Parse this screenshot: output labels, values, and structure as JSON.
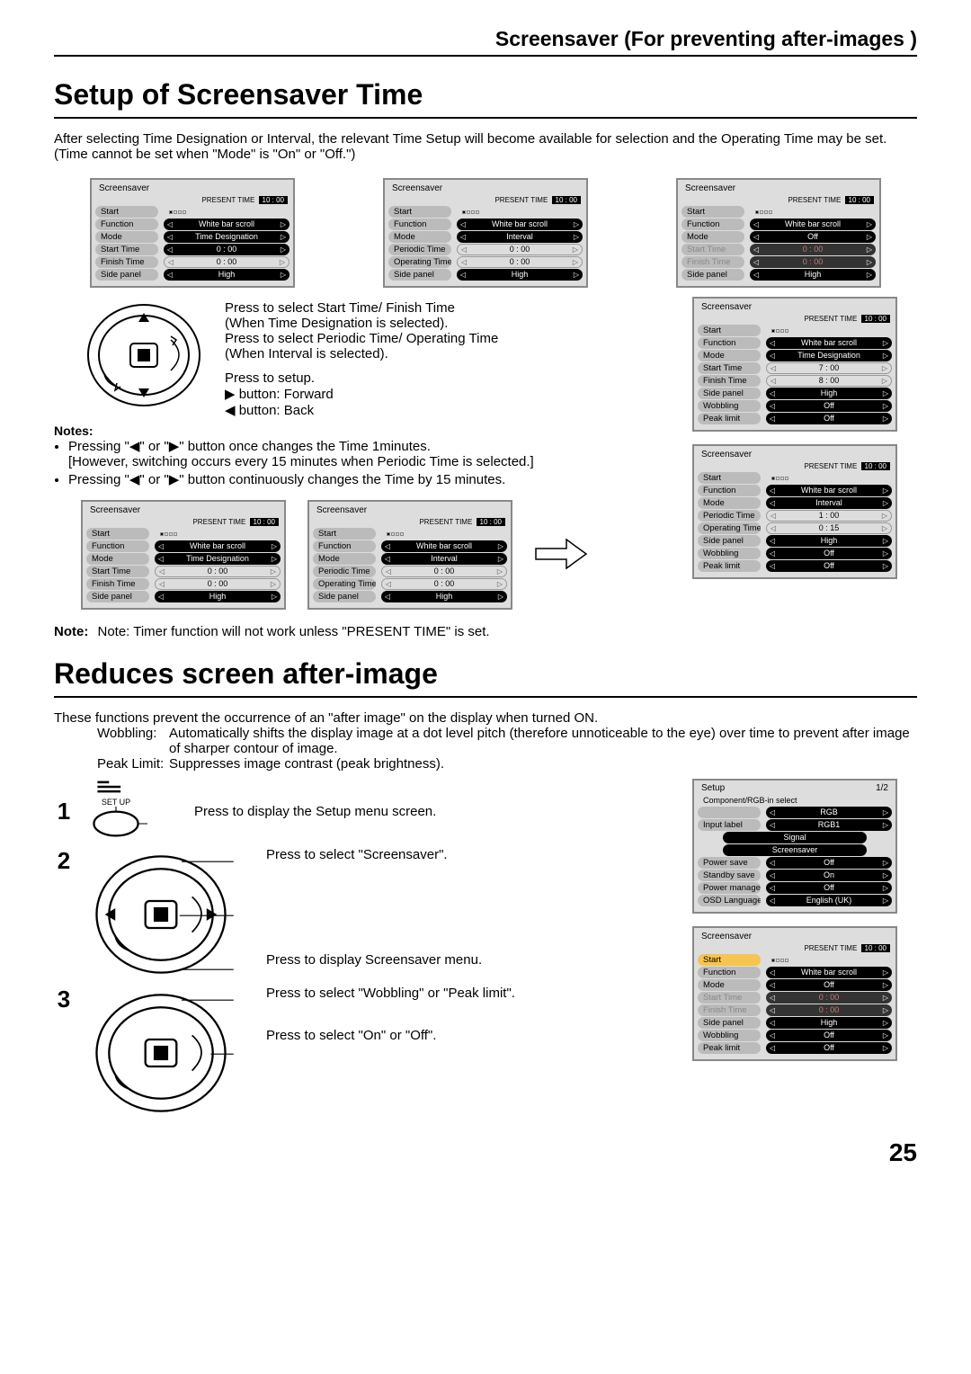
{
  "page_header": "Screensaver (For preventing after-images )",
  "section1_title": "Setup of Screensaver Time",
  "intro": "After selecting Time Designation or Interval, the relevant Time Setup will become available for selection and the Operating Time may be set. (Time cannot be set when \"Mode\" is \"On\" or \"Off.\")",
  "present_time_label": "PRESENT TIME",
  "present_time_value": "10 : 00",
  "osd_a": {
    "title": "Screensaver",
    "rows": [
      [
        "Start",
        "",
        "sel-label"
      ],
      [
        "Function",
        "White bar scroll",
        "val"
      ],
      [
        "Mode",
        "Time Designation",
        "val-sel"
      ],
      [
        "Start Time",
        "0 : 00",
        "val-sel"
      ],
      [
        "Finish Time",
        "0 : 00",
        "light"
      ],
      [
        "Side  panel",
        "High",
        "val"
      ]
    ]
  },
  "osd_b": {
    "title": "Screensaver",
    "rows": [
      [
        "Start",
        "",
        "sel-label"
      ],
      [
        "Function",
        "White bar scroll",
        "val"
      ],
      [
        "Mode",
        "Interval",
        "val-sel"
      ],
      [
        "Periodic Time",
        "0 : 00",
        "light"
      ],
      [
        "Operating Time",
        "0 : 00",
        "light"
      ],
      [
        "Side  panel",
        "High",
        "val"
      ]
    ]
  },
  "osd_c": {
    "title": "Screensaver",
    "rows": [
      [
        "Start",
        "",
        "sel-label"
      ],
      [
        "Function",
        "White bar scroll",
        "val"
      ],
      [
        "Mode",
        "Off",
        "val-sel"
      ],
      [
        "Start Time",
        "0 : 00",
        "dim-both"
      ],
      [
        "Finish Time",
        "0 : 00",
        "dim-both"
      ],
      [
        "Side  panel",
        "High",
        "val"
      ]
    ]
  },
  "instr1": "Press to select Start Time/ Finish Time",
  "instr2": "(When Time Designation is selected).",
  "instr3": "Press to select Periodic Time/ Operating Time",
  "instr4": "(When Interval  is selected).",
  "instr5": "Press to setup.",
  "instr6": "▶ button: Forward",
  "instr7": "◀ button: Back",
  "notes_hd": "Notes:",
  "note1": "Pressing \"◀\" or \"▶\" button once changes the Time 1minutes.",
  "note1b": "[However, switching occurs every 15 minutes when Periodic Time is selected.]",
  "note2": "Pressing \"◀\" or \"▶\" button continuously changes the Time by 15 minutes.",
  "osd_d": {
    "title": "Screensaver",
    "rows": [
      [
        "Start",
        "",
        "sel-label"
      ],
      [
        "Function",
        "White bar scroll",
        "val"
      ],
      [
        "Mode",
        "Time Designation",
        "val"
      ],
      [
        "Start Time",
        "0 : 00",
        "light"
      ],
      [
        "Finish Time",
        "0 : 00",
        "light"
      ],
      [
        "Side  panel",
        "High",
        "val"
      ]
    ]
  },
  "osd_e": {
    "title": "Screensaver",
    "rows": [
      [
        "Start",
        "",
        "sel-label"
      ],
      [
        "Function",
        "White bar scroll",
        "val"
      ],
      [
        "Mode",
        "Interval",
        "val"
      ],
      [
        "Periodic Time",
        "0 : 00",
        "light"
      ],
      [
        "Operating Time",
        "0 : 00",
        "light"
      ],
      [
        "Side  panel",
        "High",
        "val"
      ]
    ]
  },
  "osd_f": {
    "title": "Screensaver",
    "rows": [
      [
        "Start",
        "",
        "sel-label"
      ],
      [
        "Function",
        "White bar scroll",
        "val"
      ],
      [
        "Mode",
        "Time Designation",
        "val-sel"
      ],
      [
        "Start Time",
        "7 : 00",
        "light"
      ],
      [
        "Finish Time",
        "8 : 00",
        "light"
      ],
      [
        "Side  panel",
        "High",
        "val"
      ],
      [
        "Wobbling",
        "Off",
        "val"
      ],
      [
        "Peak limit",
        "Off",
        "val"
      ]
    ]
  },
  "osd_g": {
    "title": "Screensaver",
    "rows": [
      [
        "Start",
        "",
        "sel-label"
      ],
      [
        "Function",
        "White bar scroll",
        "val"
      ],
      [
        "Mode",
        "Interval",
        "val-sel"
      ],
      [
        "Periodic Time",
        "1 : 00",
        "light"
      ],
      [
        "Operating Time",
        "0 : 15",
        "light"
      ],
      [
        "Side  panel",
        "High",
        "val"
      ],
      [
        "Wobbling",
        "Off",
        "val"
      ],
      [
        "Peak limit",
        "Off",
        "val"
      ]
    ]
  },
  "note_timer": "Note:  Timer function will not work unless \"PRESENT TIME\" is set.",
  "section2_title": "Reduces screen after-image",
  "reduce_intro": "These functions prevent the occurrence of an \"after image\" on the display when turned ON.",
  "wobbling_label": "Wobbling:",
  "wobbling_text": "Automatically shifts the display image at a dot level pitch (therefore unnoticeable to the eye) over time to prevent after image of sharper contour of image.",
  "peak_label": "Peak Limit:",
  "peak_text": "Suppresses image contrast (peak brightness).",
  "setup_label": "SET UP",
  "step1_text": "Press to display the Setup menu screen.",
  "step2_text": "Press to select \"Screensaver\".",
  "step2b_text": "Press to display Screensaver menu.",
  "step3a_text": "Press to select \"Wobbling\" or \"Peak limit\".",
  "step3b_text": "Press to select \"On\" or \"Off\".",
  "setup_menu": {
    "title": "Setup",
    "page": "1/2",
    "header": "Component/RGB-in  select",
    "rows": [
      [
        "",
        "RGB",
        "val"
      ],
      [
        "Input label",
        "RGB1",
        "val"
      ],
      [
        "__signal",
        "Signal",
        ""
      ],
      [
        "__signal",
        "Screensaver",
        ""
      ],
      [
        "Power save",
        "Off",
        "val"
      ],
      [
        "Standby save",
        "On",
        "val"
      ],
      [
        "Power management",
        "Off",
        "val"
      ],
      [
        "OSD  Language",
        "English (UK)",
        "val"
      ]
    ]
  },
  "osd_h": {
    "title": "Screensaver",
    "rows": [
      [
        "Start",
        "",
        "sel-yellow"
      ],
      [
        "Function",
        "White bar scroll",
        "val-sel"
      ],
      [
        "Mode",
        "Off",
        "val"
      ],
      [
        "Start Time",
        "0 : 00",
        "dim-both"
      ],
      [
        "Finish Time",
        "0 : 00",
        "dim-both"
      ],
      [
        "Side  panel",
        "High",
        "val"
      ],
      [
        "Wobbling",
        "Off",
        "val"
      ],
      [
        "Peak limit",
        "Off",
        "val"
      ]
    ]
  },
  "page_number": "25"
}
